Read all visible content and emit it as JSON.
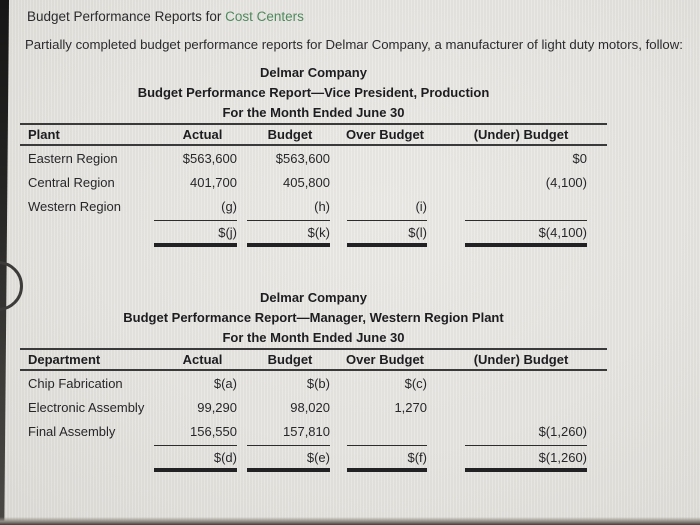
{
  "colors": {
    "background": "#e7e5e1",
    "text": "#2b2b2e",
    "accent_green": "#4e8a5e",
    "rule": "#2e2d2d"
  },
  "heading": {
    "prefix": "Budget Performance Reports for ",
    "link": "Cost Centers"
  },
  "intro": "Partially completed budget performance reports for Delmar Company, a manufacturer of light duty motors, follow:",
  "report1": {
    "company": "Delmar Company",
    "report_title": "Budget Performance Report—Vice President, Production",
    "period": "For the Month Ended June 30",
    "columns": [
      "Plant",
      "Actual",
      "Budget",
      "Over Budget",
      "(Under) Budget"
    ],
    "rows": [
      {
        "label": "Eastern Region",
        "actual": "$563,600",
        "budget": "$563,600",
        "over": "",
        "under": "$0"
      },
      {
        "label": "Central Region",
        "actual": "401,700",
        "budget": "405,800",
        "over": "",
        "under": "(4,100)"
      },
      {
        "label": "Western Region",
        "actual": "(g)",
        "budget": "(h)",
        "over": "(i)",
        "under": ""
      }
    ],
    "totals": {
      "label": "",
      "actual": "$(j)",
      "budget": "$(k)",
      "over": "$(l)",
      "under": "$(4,100)"
    }
  },
  "report2": {
    "company": "Delmar Company",
    "report_title": "Budget Performance Report—Manager, Western Region Plant",
    "period": "For the Month Ended June 30",
    "columns": [
      "Department",
      "Actual",
      "Budget",
      "Over Budget",
      "(Under) Budget"
    ],
    "rows": [
      {
        "label": "Chip Fabrication",
        "actual": "$(a)",
        "budget": "$(b)",
        "over": "$(c)",
        "under": ""
      },
      {
        "label": "Electronic Assembly",
        "actual": "99,290",
        "budget": "98,020",
        "over": "1,270",
        "under": ""
      },
      {
        "label": "Final Assembly",
        "actual": "156,550",
        "budget": "157,810",
        "over": "",
        "under": "$(1,260)"
      }
    ],
    "totals": {
      "label": "",
      "actual": "$(d)",
      "budget": "$(e)",
      "over": "$(f)",
      "under": "$(1,260)"
    }
  }
}
